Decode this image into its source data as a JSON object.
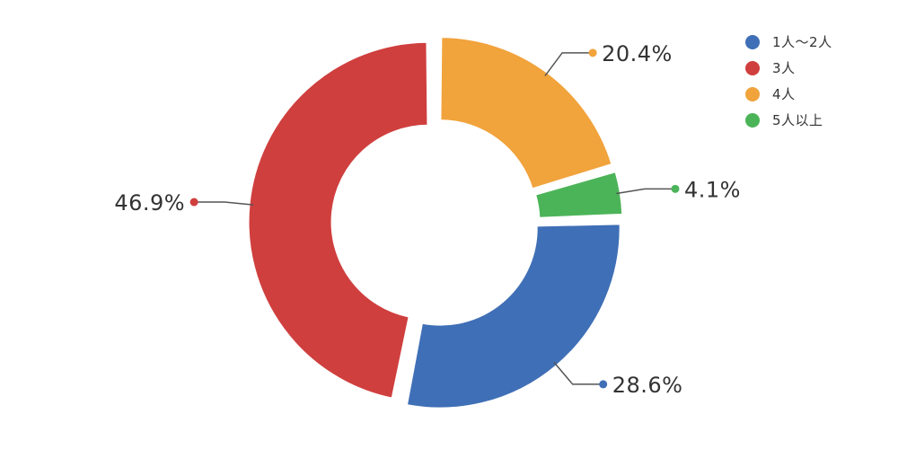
{
  "chart_data": {
    "type": "pie",
    "categories": [
      "1人～2人",
      "3人",
      "4人",
      "5人以上"
    ],
    "values": [
      28.6,
      46.9,
      20.4,
      4.1
    ],
    "value_labels": [
      "28.6%",
      "46.9%",
      "20.4%",
      "4.1%"
    ],
    "colors": [
      "#3f6fb6",
      "#cf3f3e",
      "#f1a33c",
      "#4cb458"
    ],
    "legend_position": "top-right",
    "donut": true
  }
}
